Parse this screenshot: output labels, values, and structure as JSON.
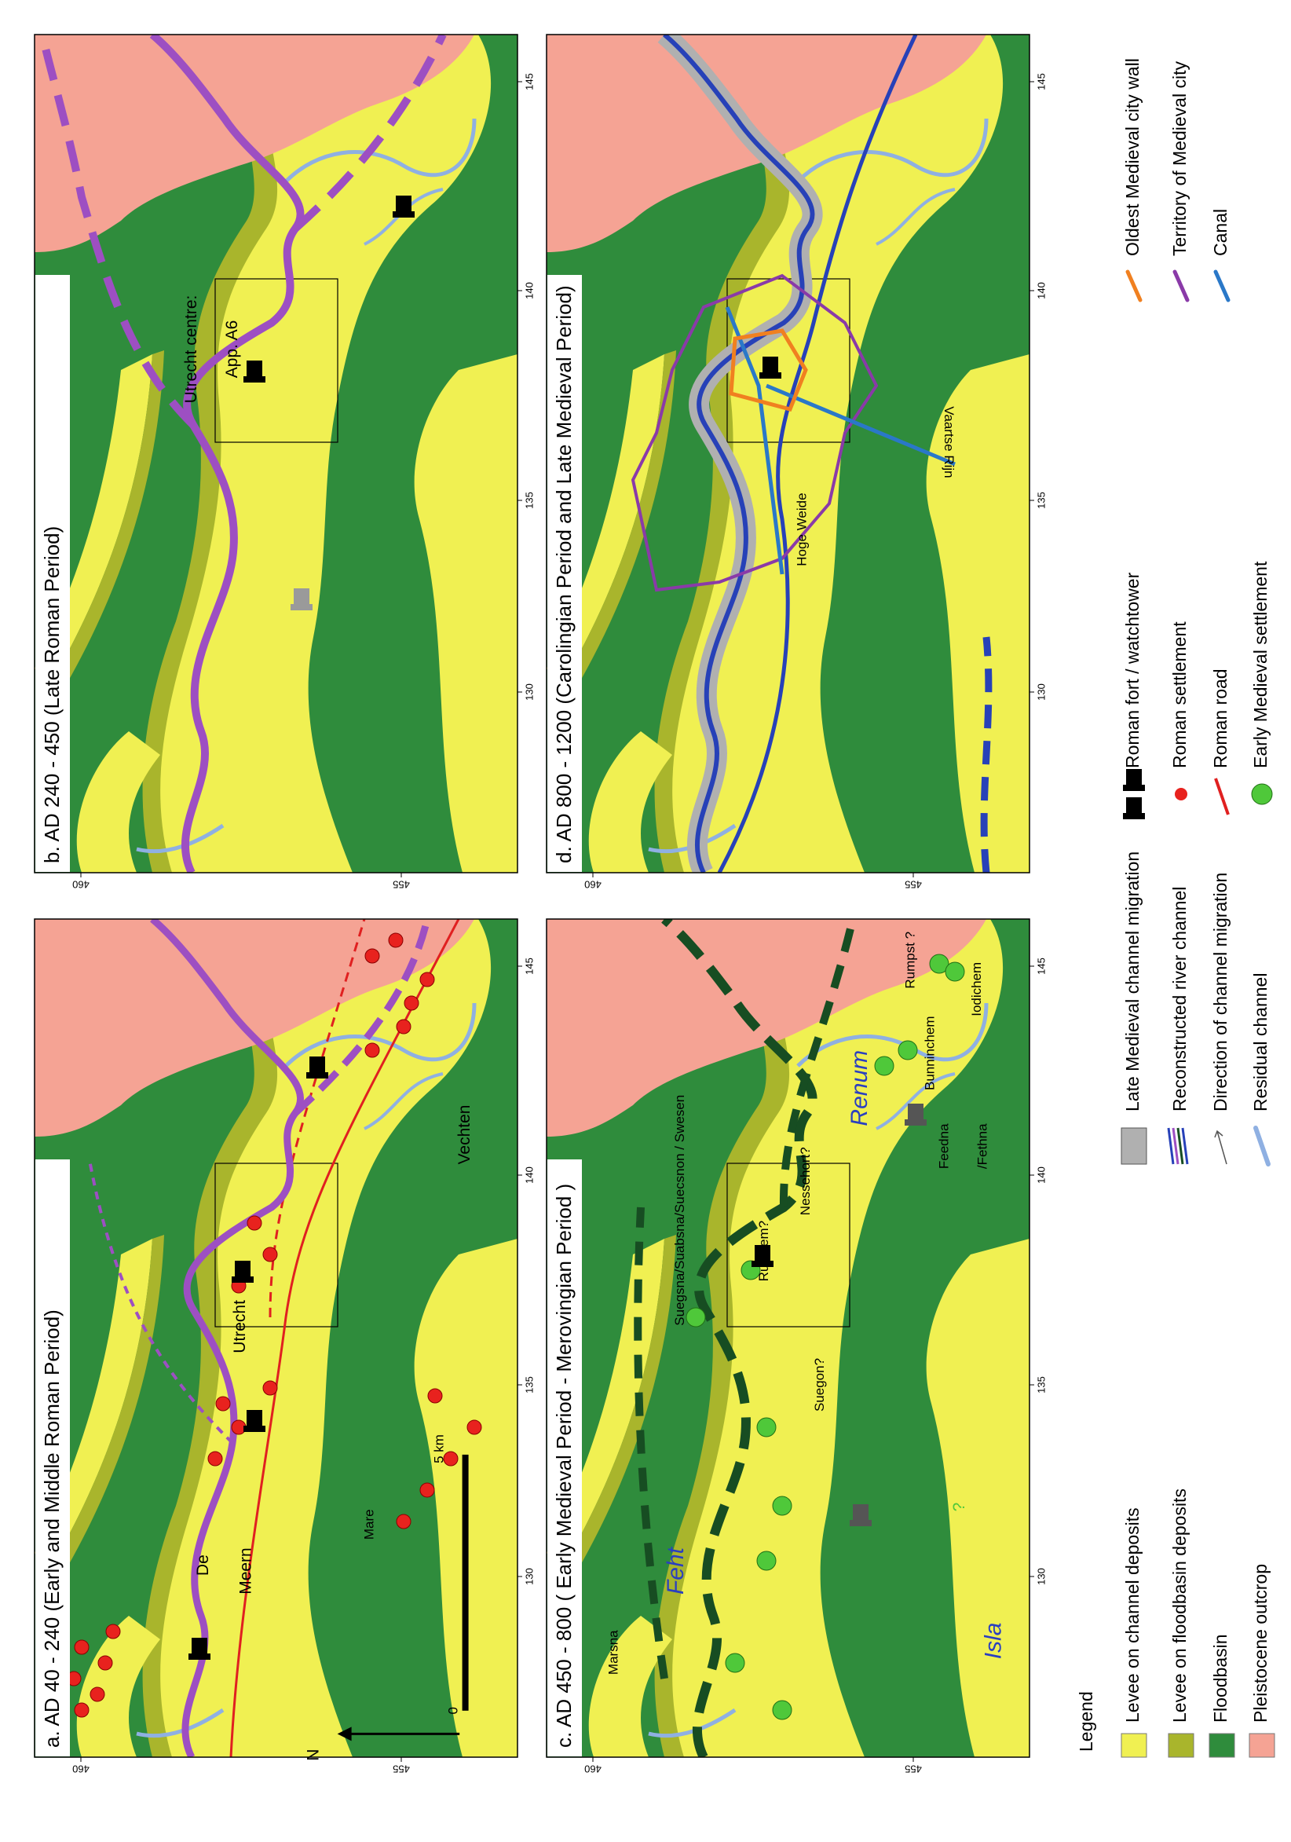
{
  "panels": [
    {
      "title": "a. AD 40 - 240 (Early and Middle Roman Period)",
      "labels": [
        "Utrecht",
        "Vechten",
        "De",
        "Meern",
        "Mare",
        "0",
        "5 km",
        "N"
      ]
    },
    {
      "title": "b. AD 240 - 450 (Late Roman Period)",
      "labels": [
        "Utrecht centre:",
        "App. A6"
      ]
    },
    {
      "title": "c. AD 450 - 800 ( Early Medieval Period - Merovingian Period )",
      "labels": [
        "Marsna",
        "Feht",
        "Suegsna/Suabsna/Suecsnon / Swesen",
        "Rudihem?",
        "Nessehort?",
        "Suegon?",
        "Renum",
        "Bunninchem",
        "Rumpst ?",
        "Iodichem",
        "Feedna",
        "/Fethna",
        "Isla",
        "?"
      ]
    },
    {
      "title": "d. AD 800 - 1200 (Carolingian Period and Late Medieval Period)",
      "labels": [
        "Hoge Weide",
        "Vaartse Rijn"
      ]
    }
  ],
  "axes": {
    "x_ticks": [
      130,
      135,
      140,
      145
    ],
    "y_ticks": [
      460,
      455
    ]
  },
  "legend": {
    "title": "Legend",
    "items": [
      "Levee on channel deposits",
      "Levee on floodbasin deposits",
      "Floodbasin",
      "Pleistocene outcrop",
      "Late Medieval channel migration",
      "Reconstructed river channel",
      "Direction of channel migration",
      "Residual channel",
      "Roman fort / watchtower",
      "Roman settlement",
      "Roman road",
      "Early Medieval settlement",
      "Oldest Medieval city wall",
      "Territory of Medieval city",
      "Canal"
    ]
  }
}
